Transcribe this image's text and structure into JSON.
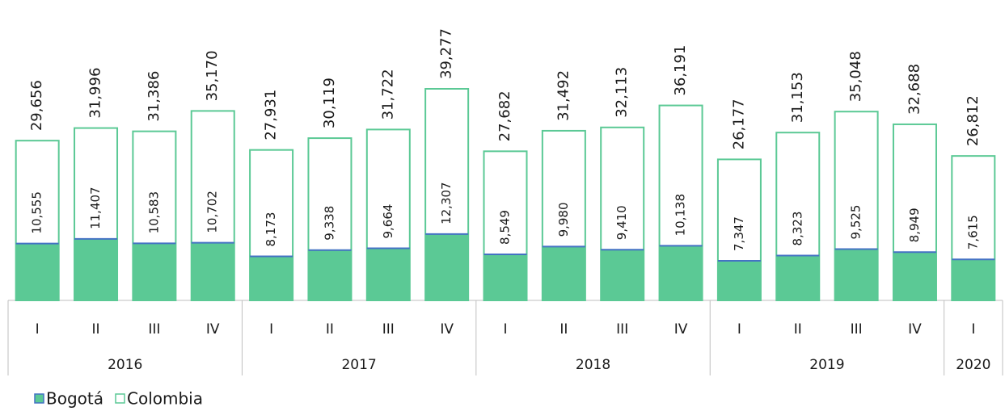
{
  "chart_data": {
    "type": "overlap-bar",
    "groups": [
      {
        "name": "2016",
        "categories": [
          "I",
          "II",
          "III",
          "IV"
        ]
      },
      {
        "name": "2017",
        "categories": [
          "I",
          "II",
          "III",
          "IV"
        ]
      },
      {
        "name": "2018",
        "categories": [
          "I",
          "II",
          "III",
          "IV"
        ]
      },
      {
        "name": "2019",
        "categories": [
          "I",
          "II",
          "III",
          "IV"
        ]
      },
      {
        "name": "2020",
        "categories": [
          "I"
        ]
      }
    ],
    "series": [
      {
        "name": "Bogotá",
        "color": "#5bc995",
        "edge": "#4472c4",
        "values": [
          10555,
          11407,
          10583,
          10702,
          8173,
          9338,
          9664,
          12307,
          8549,
          9980,
          9410,
          10138,
          7347,
          8323,
          9525,
          8949,
          7615
        ],
        "value_labels": [
          "10,555",
          "11,407",
          "10,583",
          "10,702",
          "8,173",
          "9,338",
          "9,664",
          "12,307",
          "8,549",
          "9,980",
          "9,410",
          "10,138",
          "7,347",
          "8,323",
          "9,525",
          "8,949",
          "7,615"
        ]
      },
      {
        "name": "Colombia",
        "color": "#5bc995",
        "values": [
          29656,
          31996,
          31386,
          35170,
          27931,
          30119,
          31722,
          39277,
          27682,
          31492,
          32113,
          36191,
          26177,
          31153,
          35048,
          32688,
          26812
        ],
        "value_labels": [
          "29,656",
          "31,996",
          "31,386",
          "35,170",
          "27,931",
          "30,119",
          "31,722",
          "39,277",
          "27,682",
          "31,492",
          "32,113",
          "36,191",
          "26,177",
          "31,153",
          "35,048",
          "32,688",
          "26,812"
        ]
      }
    ],
    "legend": "bottom-left"
  }
}
